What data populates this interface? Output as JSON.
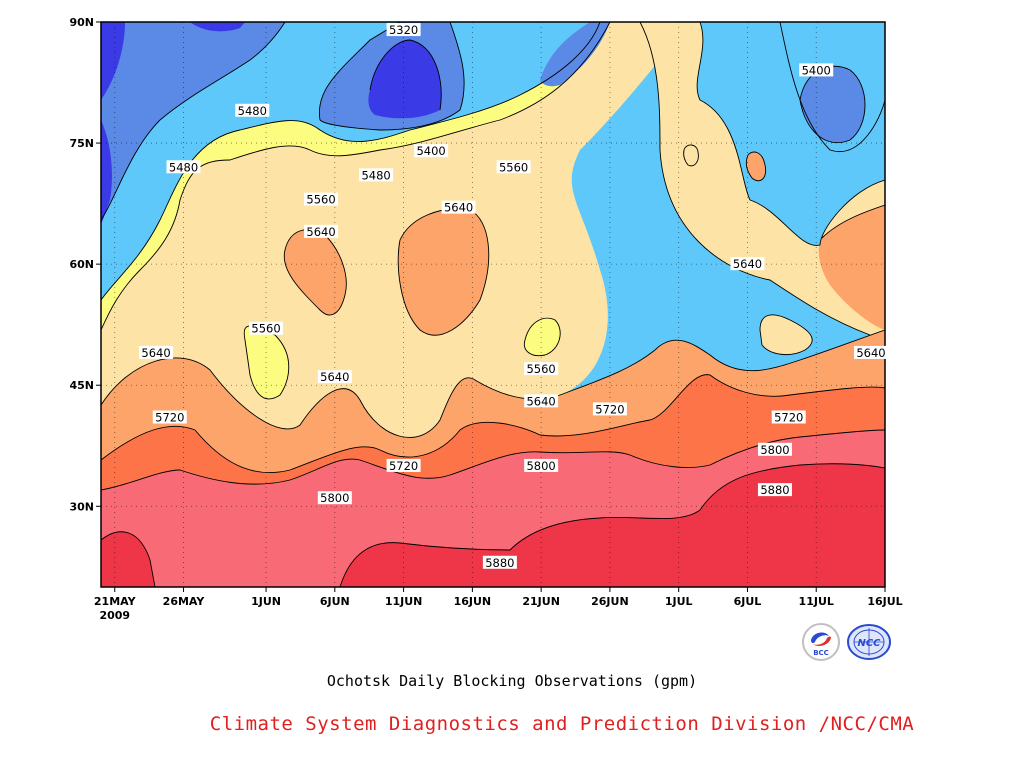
{
  "chart_data": {
    "type": "heatmap",
    "subtype": "filled-contour (time-latitude)",
    "title": "Ochotsk Daily Blocking Observations (gpm)",
    "variable_unit": "gpm",
    "x_axis": {
      "ticks": [
        "21MAY",
        "26MAY",
        "1JUN",
        "6JUN",
        "11JUN",
        "16JUN",
        "21JUN",
        "26JUN",
        "1JUL",
        "6JUL",
        "11JUL",
        "16JUL"
      ],
      "year_label": "2009",
      "range": [
        "20 May 2009",
        "16 Jul 2009"
      ]
    },
    "y_axis": {
      "ticks": [
        "30N",
        "45N",
        "60N",
        "75N",
        "90N"
      ],
      "tick_values": [
        30,
        45,
        60,
        75,
        90
      ],
      "range": [
        20,
        90
      ]
    },
    "contour_levels": [
      5320,
      5400,
      5480,
      5560,
      5640,
      5720,
      5800,
      5880
    ],
    "fill_colors": [
      "#1f1fcf",
      "#3a3ae6",
      "#5a8ae6",
      "#5ec8fa",
      "#fcfc80",
      "#fde4a6",
      "#fca46a",
      "#fc7448",
      "#f76a76",
      "#ef3648"
    ],
    "contour_labels": [
      {
        "text": "5320",
        "date": "11 Jun",
        "lat": 89
      },
      {
        "text": "5400",
        "date": "11 Jul",
        "lat": 84
      },
      {
        "text": "5480",
        "date": "31 May",
        "lat": 79
      },
      {
        "text": "5400",
        "date": "13 Jun",
        "lat": 74
      },
      {
        "text": "5480",
        "date": "26 May",
        "lat": 72
      },
      {
        "text": "5560",
        "date": "19 Jun",
        "lat": 72
      },
      {
        "text": "5480",
        "date": "9 Jun",
        "lat": 71
      },
      {
        "text": "5560",
        "date": "5 Jun",
        "lat": 68
      },
      {
        "text": "5640",
        "date": "15 Jun",
        "lat": 67
      },
      {
        "text": "5640",
        "date": "5 Jun",
        "lat": 64
      },
      {
        "text": "5640",
        "date": "6 Jul",
        "lat": 60
      },
      {
        "text": "5560",
        "date": "1 Jun",
        "lat": 52
      },
      {
        "text": "5640",
        "date": "24 May",
        "lat": 49
      },
      {
        "text": "5640",
        "date": "16 Jul",
        "lat": 49
      },
      {
        "text": "5560",
        "date": "21 Jun",
        "lat": 47
      },
      {
        "text": "5640",
        "date": "6 Jun",
        "lat": 46
      },
      {
        "text": "5640",
        "date": "21 Jun",
        "lat": 43
      },
      {
        "text": "5720",
        "date": "26 Jun",
        "lat": 42
      },
      {
        "text": "5720",
        "date": "25 May",
        "lat": 41
      },
      {
        "text": "5720",
        "date": "9 Jul",
        "lat": 41
      },
      {
        "text": "5800",
        "date": "8 Jul",
        "lat": 37
      },
      {
        "text": "5720",
        "date": "11 Jun",
        "lat": 35
      },
      {
        "text": "5800",
        "date": "21 Jun",
        "lat": 35
      },
      {
        "text": "5880",
        "date": "8 Jul",
        "lat": 32
      },
      {
        "text": "5800",
        "date": "6 Jun",
        "lat": 31
      },
      {
        "text": "5880",
        "date": "18 Jun",
        "lat": 23
      }
    ],
    "grid": "dotted",
    "legend": "none"
  },
  "footer": {
    "credit": "Climate System Diagnostics and Prediction Division /NCC/CMA",
    "credit_color": "#e02020"
  },
  "logos": {
    "left_text": "BCC",
    "right_text": "NCC"
  },
  "colors": {
    "contour_line": "#000000",
    "credit": "#e02020"
  }
}
